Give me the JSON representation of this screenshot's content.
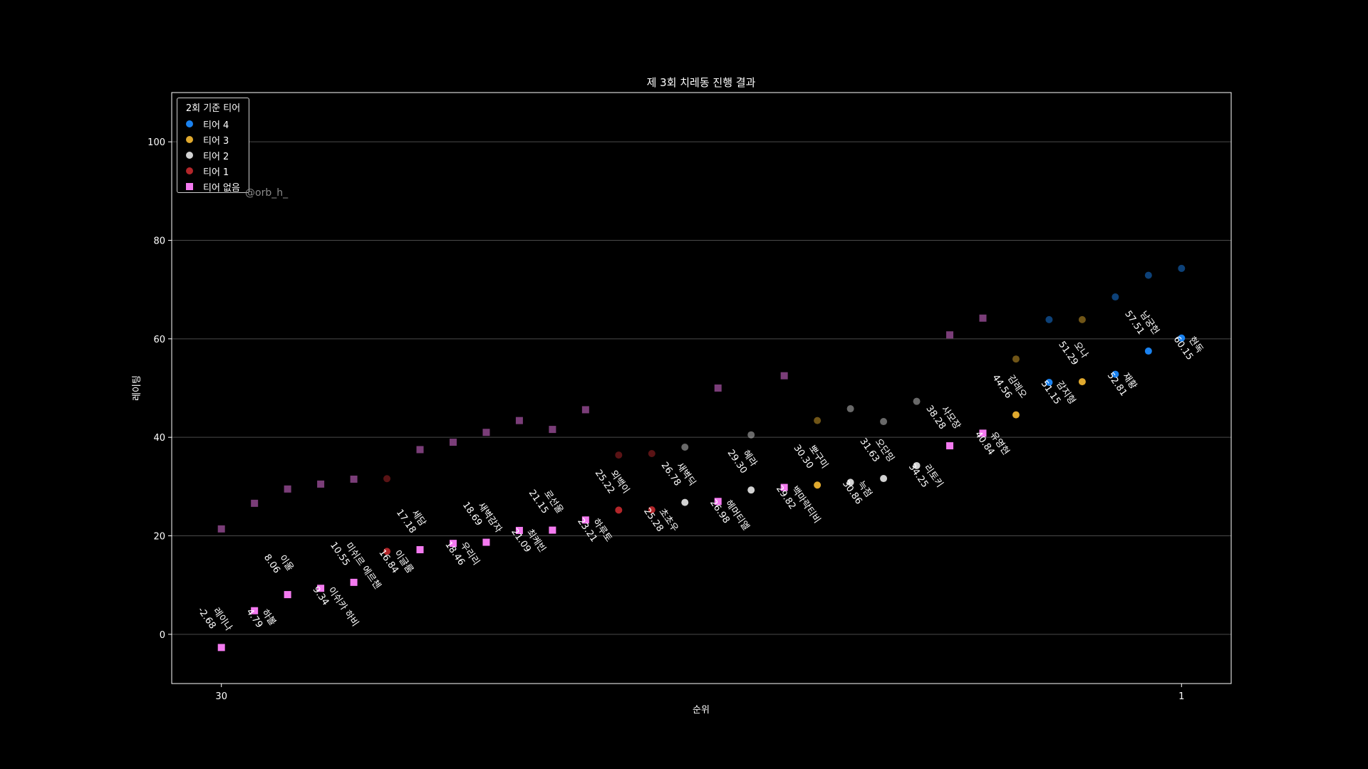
{
  "chart_data": {
    "type": "scatter",
    "title": "제 3회 치레동 진행 결과",
    "xlabel": "순위",
    "ylabel": "레이팅",
    "xlim": [
      31.5,
      -0.5
    ],
    "ylim": [
      -10,
      110
    ],
    "xticks": [
      {
        "value": 30,
        "label": "30"
      },
      {
        "value": 1,
        "label": "1"
      }
    ],
    "yticks": [
      0,
      20,
      40,
      60,
      80,
      100
    ],
    "grid": "horizontal",
    "legend": {
      "title": "2회 기준 티어",
      "placement": "top-left",
      "entries": [
        {
          "label": "티어 4",
          "color": "#1a82f0",
          "marker": "circle"
        },
        {
          "label": "티어 3",
          "color": "#e0a92e",
          "marker": "circle"
        },
        {
          "label": "티어 2",
          "color": "#d2d2d2",
          "marker": "circle"
        },
        {
          "label": "티어 1",
          "color": "#b3262a",
          "marker": "circle"
        },
        {
          "label": "티어 없음",
          "color": "#f47af0",
          "marker": "square"
        }
      ]
    },
    "watermark": "@orb_h_",
    "series": [
      {
        "name": "3회",
        "points": [
          {
            "rank": 30,
            "rating": -2.68,
            "name": "레이나",
            "tier": 0
          },
          {
            "rank": 29,
            "rating": 4.79,
            "name": "하볼",
            "tier": 0
          },
          {
            "rank": 28,
            "rating": 8.06,
            "name": "이울",
            "tier": 0
          },
          {
            "rank": 27,
            "rating": 9.34,
            "name": "이쉬카 하비",
            "tier": 0
          },
          {
            "rank": 26,
            "rating": 10.55,
            "name": "미쉬르 에르첸",
            "tier": 0
          },
          {
            "rank": 25,
            "rating": 16.84,
            "name": "이글룸",
            "tier": 1
          },
          {
            "rank": 24,
            "rating": 17.18,
            "name": "세담",
            "tier": 0
          },
          {
            "rank": 23,
            "rating": 18.46,
            "name": "우리리",
            "tier": 0
          },
          {
            "rank": 22,
            "rating": 18.69,
            "name": "새벽감자",
            "tier": 0
          },
          {
            "rank": 21,
            "rating": 21.09,
            "name": "최케빈",
            "tier": 0
          },
          {
            "rank": 20,
            "rating": 21.15,
            "name": "로선울",
            "tier": 0
          },
          {
            "rank": 19,
            "rating": 23.21,
            "name": "하루토",
            "tier": 0
          },
          {
            "rank": 18,
            "rating": 25.22,
            "name": "외백이",
            "tier": 1
          },
          {
            "rank": 17,
            "rating": 25.28,
            "name": "초초우",
            "tier": 1
          },
          {
            "rank": 16,
            "rating": 26.78,
            "name": "새벽딕",
            "tier": 2
          },
          {
            "rank": 15,
            "rating": 26.98,
            "name": "헤머티엘",
            "tier": 0
          },
          {
            "rank": 14,
            "rating": 29.3,
            "name": "혜라",
            "tier": 2
          },
          {
            "rank": 13,
            "rating": 29.82,
            "name": "백마락티비",
            "tier": 0
          },
          {
            "rank": 12,
            "rating": 30.3,
            "name": "뽀구미",
            "tier": 3
          },
          {
            "rank": 11,
            "rating": 30.86,
            "name": "늑점",
            "tier": 2
          },
          {
            "rank": 10,
            "rating": 31.63,
            "name": "오단밍",
            "tier": 2
          },
          {
            "rank": 9,
            "rating": 34.25,
            "name": "리토키",
            "tier": 2
          },
          {
            "rank": 8,
            "rating": 38.28,
            "name": "사모장",
            "tier": 0
          },
          {
            "rank": 7,
            "rating": 40.84,
            "name": "유영현",
            "tier": 0
          },
          {
            "rank": 6,
            "rating": 44.56,
            "name": "김레오",
            "tier": 3
          },
          {
            "rank": 5,
            "rating": 51.15,
            "name": "감지형",
            "tier": 4
          },
          {
            "rank": 4,
            "rating": 51.29,
            "name": "오나",
            "tier": 3
          },
          {
            "rank": 3,
            "rating": 52.81,
            "name": "재황",
            "tier": 4
          },
          {
            "rank": 2,
            "rating": 57.51,
            "name": "남궁헌",
            "tier": 4
          },
          {
            "rank": 1,
            "rating": 60.15,
            "name": "현독",
            "tier": 4
          }
        ]
      },
      {
        "name": "2회",
        "points": [
          {
            "rank": 30,
            "rating": 21.4,
            "tier": 0
          },
          {
            "rank": 29,
            "rating": 26.6,
            "tier": 0
          },
          {
            "rank": 28,
            "rating": 29.5,
            "tier": 0
          },
          {
            "rank": 27,
            "rating": 30.5,
            "tier": 0
          },
          {
            "rank": 26,
            "rating": 31.5,
            "tier": 0
          },
          {
            "rank": 25,
            "rating": 31.6,
            "tier": 1
          },
          {
            "rank": 24,
            "rating": 37.5,
            "tier": 0
          },
          {
            "rank": 23,
            "rating": 39.0,
            "tier": 0
          },
          {
            "rank": 22,
            "rating": 41.0,
            "tier": 0
          },
          {
            "rank": 21,
            "rating": 43.4,
            "tier": 0
          },
          {
            "rank": 20,
            "rating": 41.6,
            "tier": 0
          },
          {
            "rank": 19,
            "rating": 45.6,
            "tier": 0
          },
          {
            "rank": 18,
            "rating": 36.4,
            "tier": 1
          },
          {
            "rank": 17,
            "rating": 36.7,
            "tier": 1
          },
          {
            "rank": 16,
            "rating": 38.0,
            "tier": 2
          },
          {
            "rank": 15,
            "rating": 50.0,
            "tier": 0
          },
          {
            "rank": 14,
            "rating": 40.5,
            "tier": 2
          },
          {
            "rank": 13,
            "rating": 52.5,
            "tier": 0
          },
          {
            "rank": 12,
            "rating": 43.4,
            "tier": 3
          },
          {
            "rank": 11,
            "rating": 45.8,
            "tier": 2
          },
          {
            "rank": 10,
            "rating": 43.2,
            "tier": 2
          },
          {
            "rank": 9,
            "rating": 47.3,
            "tier": 2
          },
          {
            "rank": 8,
            "rating": 60.8,
            "tier": 0
          },
          {
            "rank": 7,
            "rating": 64.2,
            "tier": 0
          },
          {
            "rank": 6,
            "rating": 55.9,
            "tier": 3
          },
          {
            "rank": 5,
            "rating": 63.9,
            "tier": 4
          },
          {
            "rank": 4,
            "rating": 63.9,
            "tier": 3
          },
          {
            "rank": 3,
            "rating": 68.5,
            "tier": 4
          },
          {
            "rank": 2,
            "rating": 72.9,
            "tier": 4
          },
          {
            "rank": 1,
            "rating": 74.3,
            "tier": 4
          }
        ]
      }
    ]
  }
}
